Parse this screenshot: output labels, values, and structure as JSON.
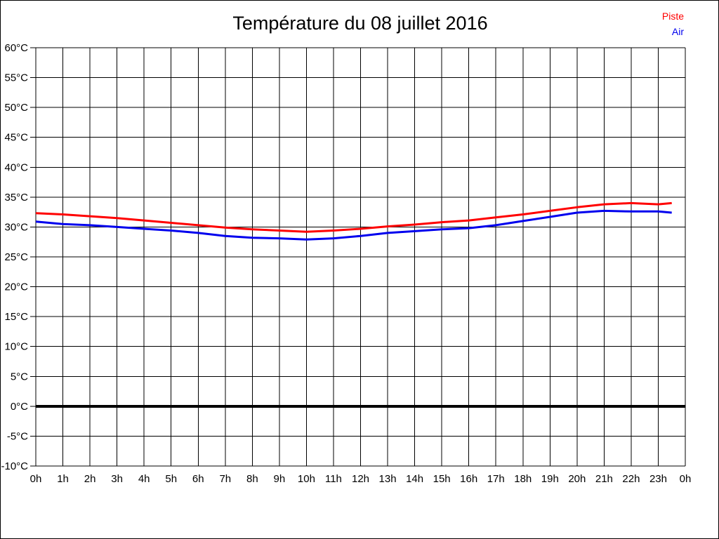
{
  "title": "Température du 08 juillet 2016",
  "legend": {
    "position": "top-right",
    "items": [
      {
        "label": "Piste",
        "color": "#ff0000"
      },
      {
        "label": "Air",
        "color": "#0000ee"
      }
    ]
  },
  "colors": {
    "background": "#ffffff",
    "grid": "#000000",
    "zero_line": "#000000",
    "piste_line": "#ff0000",
    "air_line": "#0000ee",
    "text": "#000000"
  },
  "chart_data": {
    "type": "line",
    "title": "Température du 08 juillet 2016",
    "xlabel": "",
    "ylabel": "",
    "xlim": [
      0,
      24
    ],
    "ylim": [
      -10,
      60
    ],
    "grid": true,
    "zero_line_emphasized": true,
    "legend_position": "top-right",
    "x_ticks": [
      0,
      1,
      2,
      3,
      4,
      5,
      6,
      7,
      8,
      9,
      10,
      11,
      12,
      13,
      14,
      15,
      16,
      17,
      18,
      19,
      20,
      21,
      22,
      23,
      24
    ],
    "x_tick_labels": [
      "0h",
      "1h",
      "2h",
      "3h",
      "4h",
      "5h",
      "6h",
      "7h",
      "8h",
      "9h",
      "10h",
      "11h",
      "12h",
      "13h",
      "14h",
      "15h",
      "16h",
      "17h",
      "18h",
      "19h",
      "20h",
      "21h",
      "22h",
      "23h",
      "0h"
    ],
    "y_ticks": [
      60,
      55,
      50,
      45,
      40,
      35,
      30,
      25,
      20,
      15,
      10,
      5,
      0,
      -5,
      -10
    ],
    "y_tick_labels": [
      "60°C",
      "55°C",
      "50°C",
      "45°C",
      "40°C",
      "35°C",
      "30°C",
      "25°C",
      "20°C",
      "15°C",
      "10°C",
      "5°C",
      "0°C",
      "-5°C",
      "-10°C"
    ],
    "x": [
      0,
      1,
      2,
      3,
      4,
      5,
      6,
      7,
      8,
      9,
      10,
      11,
      12,
      13,
      14,
      15,
      16,
      17,
      18,
      19,
      20,
      21,
      22,
      23,
      23.5
    ],
    "series": [
      {
        "name": "Piste",
        "color": "#ff0000",
        "values": [
          32.3,
          32.1,
          31.8,
          31.5,
          31.1,
          30.7,
          30.3,
          29.9,
          29.6,
          29.4,
          29.2,
          29.4,
          29.7,
          30.1,
          30.4,
          30.8,
          31.1,
          31.6,
          32.1,
          32.7,
          33.3,
          33.8,
          34.0,
          33.8,
          34.0
        ]
      },
      {
        "name": "Air",
        "color": "#0000ee",
        "values": [
          30.9,
          30.5,
          30.3,
          30.0,
          29.7,
          29.4,
          29.0,
          28.5,
          28.2,
          28.1,
          27.9,
          28.1,
          28.5,
          29.0,
          29.3,
          29.6,
          29.8,
          30.3,
          31.0,
          31.7,
          32.4,
          32.7,
          32.6,
          32.6,
          32.4
        ]
      }
    ]
  }
}
